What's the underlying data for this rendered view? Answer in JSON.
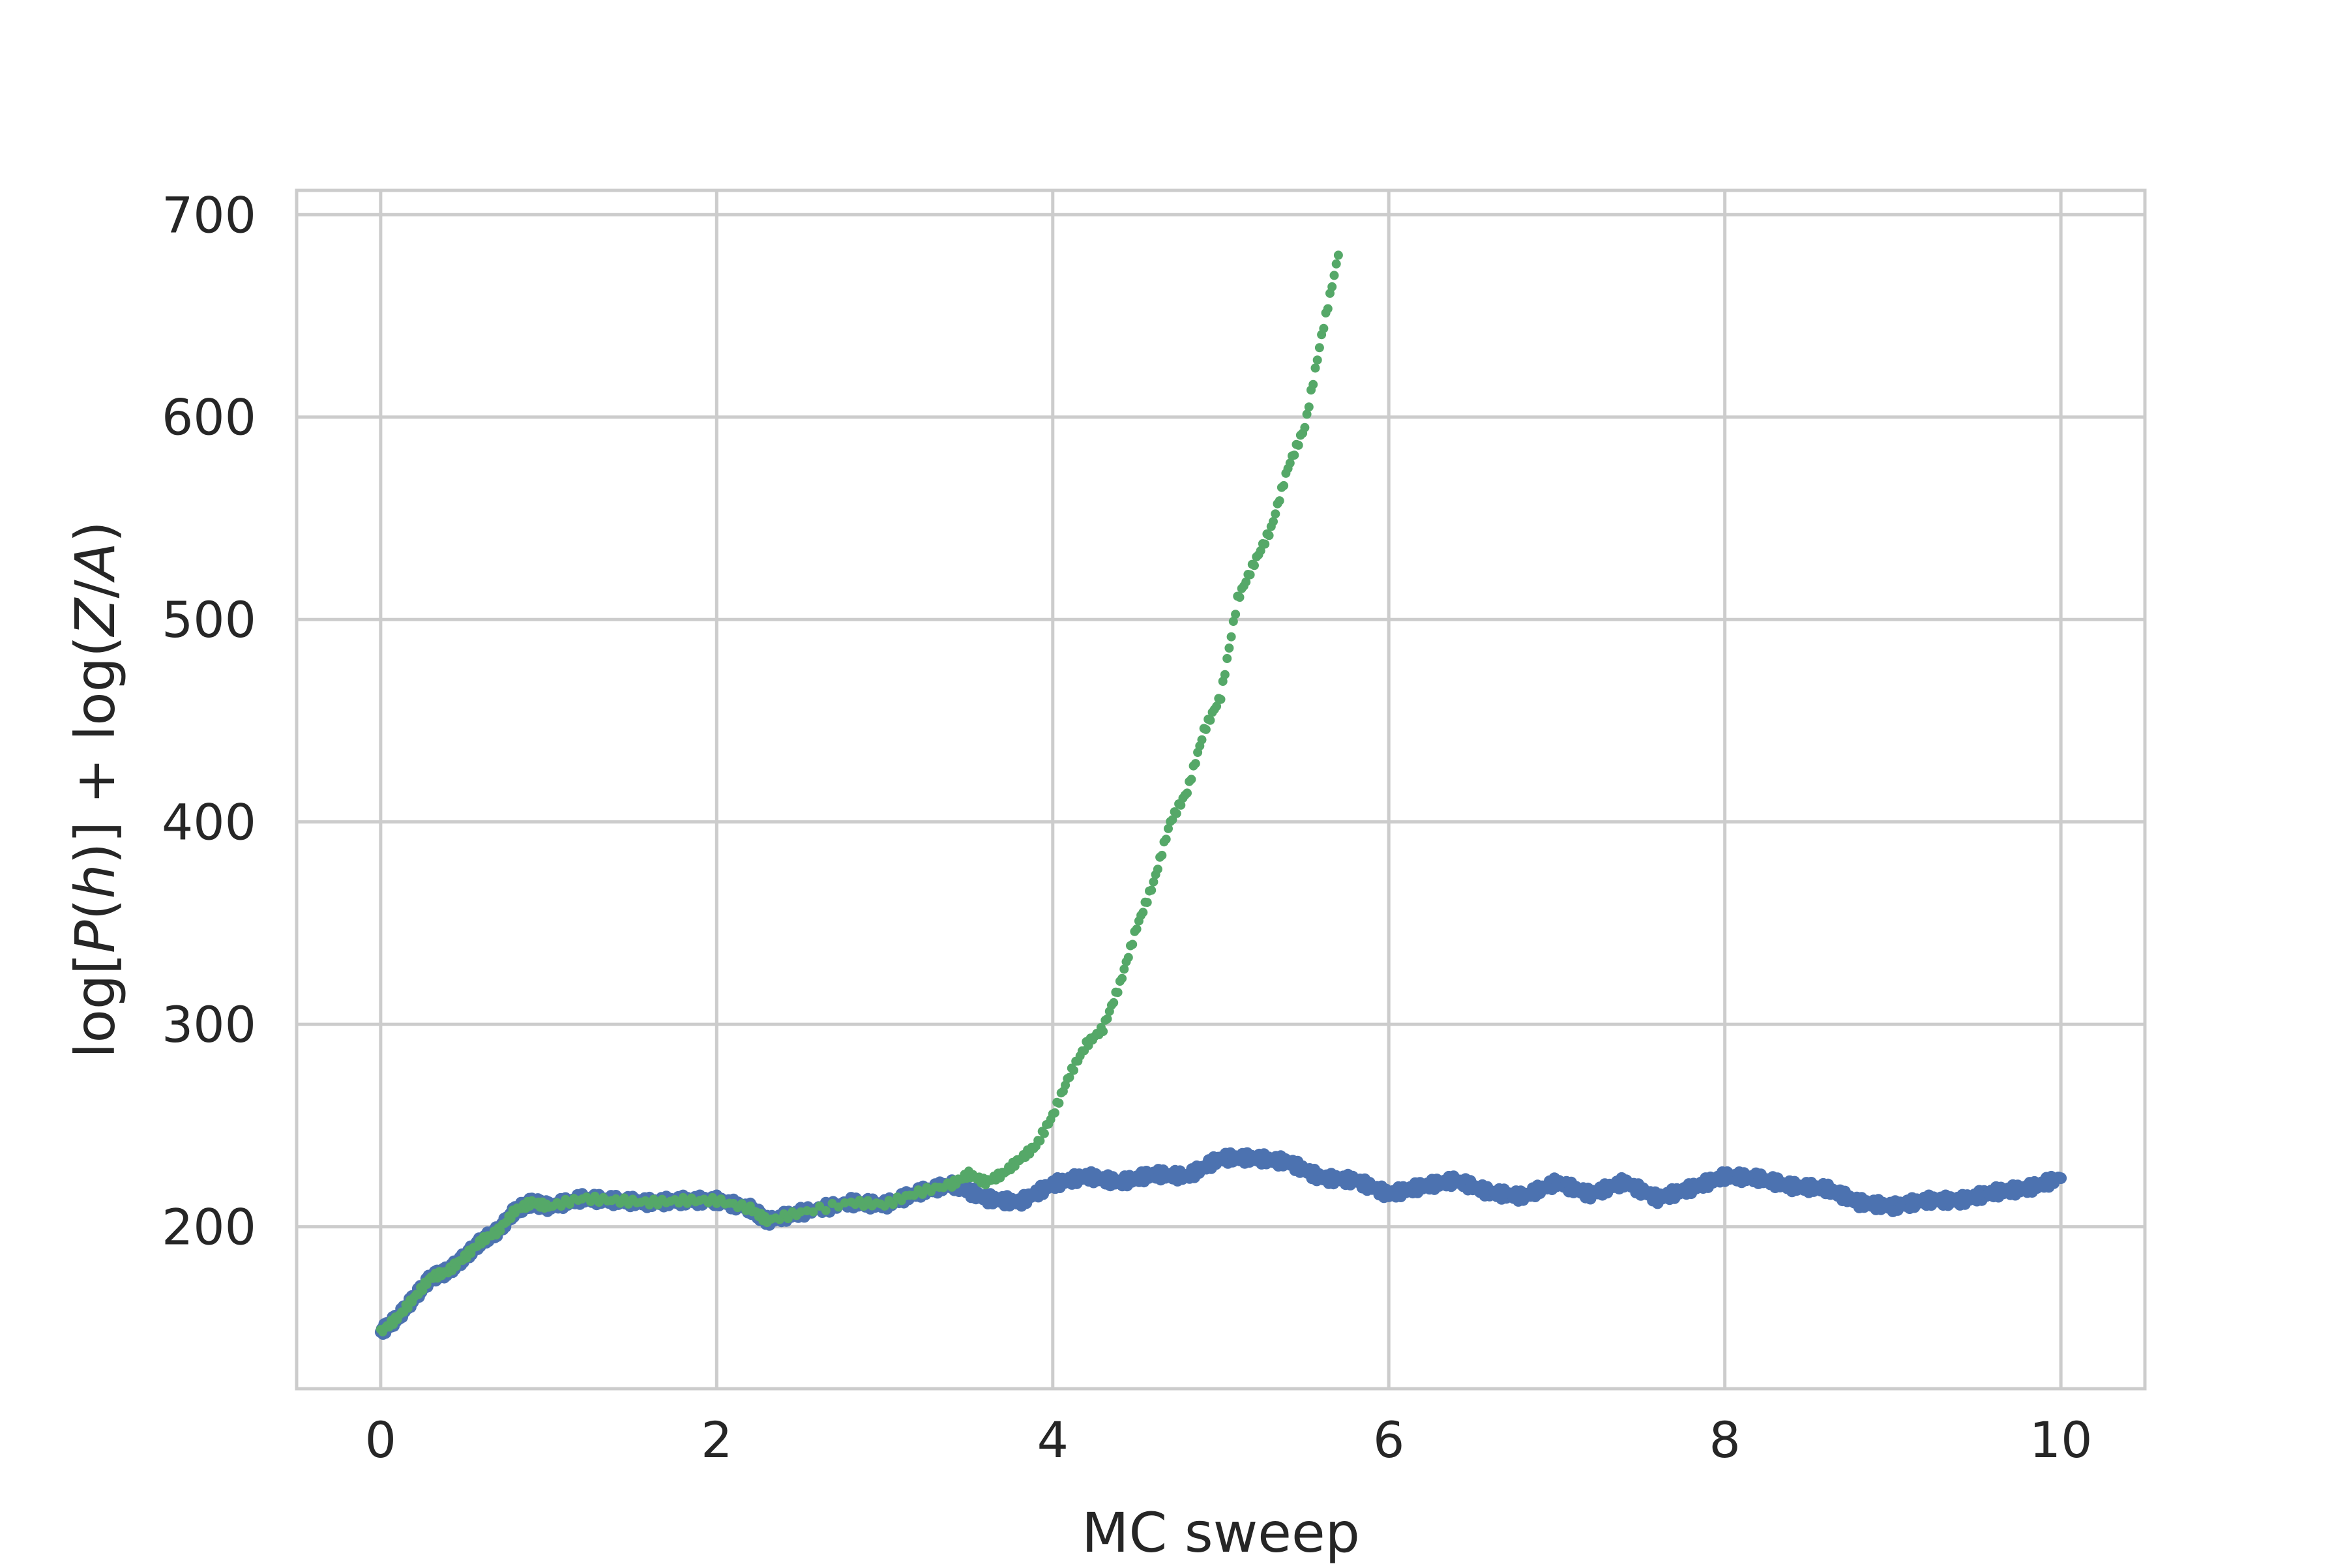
{
  "chart_data": {
    "type": "scatter",
    "title": "",
    "xlabel": "MC sweep",
    "ylabel_parts": [
      "log[",
      "P",
      "(",
      "h",
      ")] + log(",
      "Z",
      "/",
      "A",
      ")"
    ],
    "ylabel": "log[P(h)] + log(Z/A)",
    "xlim": [
      -0.5,
      10.5
    ],
    "ylim": [
      120,
      712
    ],
    "xticks": [
      0,
      2,
      4,
      6,
      8,
      10
    ],
    "xtick_labels": [
      "0",
      "2",
      "4",
      "6",
      "8",
      "10"
    ],
    "yticks": [
      200,
      300,
      400,
      500,
      600,
      700
    ],
    "ytick_labels": [
      "200",
      "300",
      "400",
      "500",
      "600",
      "700"
    ],
    "grid": true,
    "legend": "none",
    "series": [
      {
        "color": "#4c72b0",
        "x": [
          0.0,
          0.1,
          0.2,
          0.3,
          0.4,
          0.5,
          0.6,
          0.7,
          0.8,
          0.9,
          1.0,
          1.2,
          1.4,
          1.6,
          1.8,
          2.0,
          2.2,
          2.3,
          2.5,
          2.8,
          3.0,
          3.2,
          3.4,
          3.6,
          3.8,
          4.0,
          4.2,
          4.4,
          4.6,
          4.8,
          5.0,
          5.2,
          5.4,
          5.6,
          5.8,
          6.0,
          6.2,
          6.4,
          6.6,
          6.8,
          7.0,
          7.2,
          7.4,
          7.6,
          7.8,
          8.0,
          8.2,
          8.4,
          8.6,
          8.8,
          9.0,
          9.2,
          9.4,
          9.6,
          9.8,
          10.0
        ],
        "y": [
          148,
          155,
          165,
          175,
          178,
          185,
          193,
          198,
          208,
          212,
          210,
          214,
          213,
          212,
          213,
          213,
          209,
          203,
          207,
          212,
          211,
          217,
          221,
          214,
          212,
          221,
          225,
          222,
          226,
          225,
          234,
          234,
          232,
          224,
          223,
          216,
          220,
          223,
          217,
          215,
          222,
          216,
          222,
          214,
          219,
          225,
          224,
          220,
          219,
          212,
          210,
          213,
          213,
          217,
          219,
          224
        ]
      },
      {
        "color": "#55a868",
        "x": [
          0.0,
          0.1,
          0.2,
          0.3,
          0.4,
          0.5,
          0.6,
          0.7,
          0.8,
          0.9,
          1.0,
          1.2,
          1.4,
          1.6,
          1.8,
          2.0,
          2.2,
          2.3,
          2.5,
          2.8,
          3.0,
          3.2,
          3.4,
          3.5,
          3.6,
          3.7,
          3.8,
          3.9,
          4.0,
          4.1,
          4.2,
          4.3,
          4.4,
          4.5,
          4.6,
          4.7,
          4.8,
          4.9,
          5.0,
          5.1,
          5.2,
          5.3,
          5.4,
          5.5,
          5.6,
          5.7
        ],
        "y": [
          148,
          155,
          165,
          175,
          178,
          185,
          193,
          198,
          208,
          212,
          210,
          214,
          213,
          212,
          213,
          213,
          209,
          203,
          207,
          212,
          211,
          217,
          221,
          226,
          222,
          226,
          233,
          240,
          255,
          275,
          290,
          298,
          320,
          348,
          370,
          400,
          415,
          445,
          462,
          510,
          528,
          545,
          575,
          595,
          640,
          680
        ]
      }
    ]
  }
}
